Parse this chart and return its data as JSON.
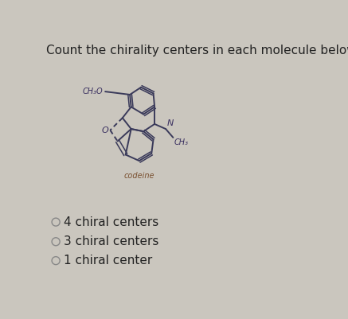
{
  "title": "Count the chirality centers in each molecule below.",
  "title_fontsize": 11,
  "background_color": "#ccc8c0",
  "molecule_label": "codeine",
  "molecule_label_color": "#7a5030",
  "label_ch3o": "CH₃O",
  "label_o": "O",
  "label_n": "N",
  "label_ch3": "CH₃",
  "options": [
    "4 chiral centers",
    "3 chiral centers",
    "1 chiral center"
  ],
  "option_fontsize": 11,
  "radio_color": "#888888",
  "text_color": "#222222",
  "bond_color": "#3a3a5a",
  "bg_color": "#cac6be"
}
